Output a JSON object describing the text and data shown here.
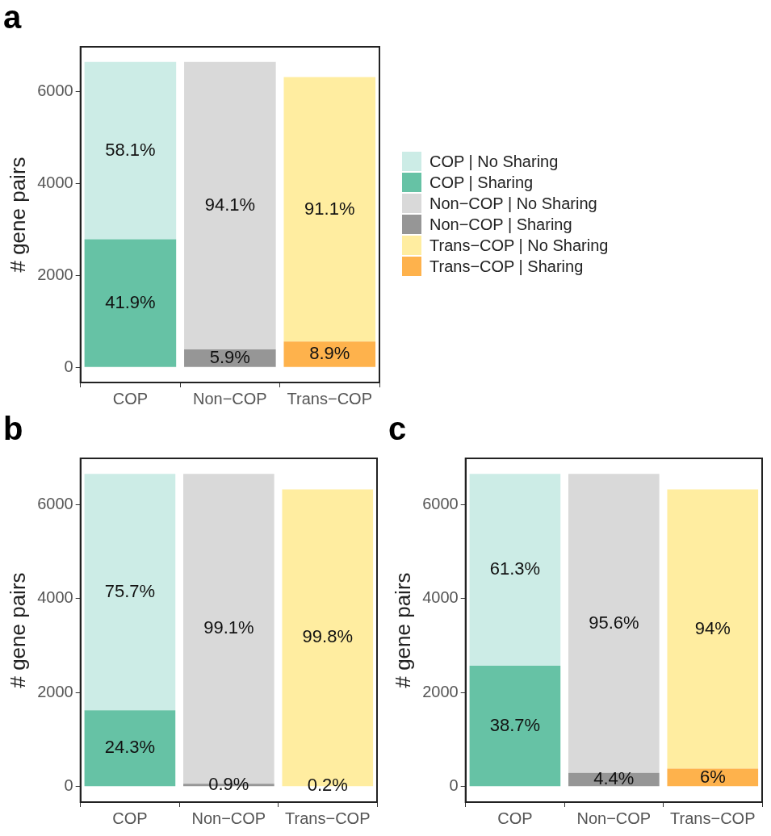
{
  "chart_data": [
    {
      "type": "bar",
      "title": "a",
      "ylabel": "# gene pairs",
      "categories": [
        "COP",
        "Non−COP",
        "Trans−COP"
      ],
      "stacked": true,
      "ylim": [
        -330,
        6980
      ],
      "yticks": [
        0,
        2000,
        4000,
        6000
      ],
      "legend": "right",
      "series": [
        {
          "name": "COP | Sharing",
          "color": "#66c2a5",
          "values": [
            2790,
            null,
            null
          ]
        },
        {
          "name": "COP | No Sharing",
          "color": "#ccece6",
          "values": [
            3860,
            null,
            null
          ]
        },
        {
          "name": "Non−COP | Sharing",
          "color": "#969696",
          "values": [
            null,
            390,
            null
          ]
        },
        {
          "name": "Non−COP | No Sharing",
          "color": "#d9d9d9",
          "values": [
            null,
            6260,
            null
          ]
        },
        {
          "name": "Trans−COP | Sharing",
          "color": "#feb24c",
          "values": [
            null,
            null,
            560
          ]
        },
        {
          "name": "Trans−COP | No Sharing",
          "color": "#ffeda0",
          "values": [
            null,
            null,
            5760
          ]
        }
      ],
      "annotations": [
        "41.9%",
        "58.1%",
        "5.9%",
        "94.1%",
        "8.9%",
        "91.1%"
      ]
    },
    {
      "type": "bar",
      "title": "b",
      "ylabel": "# gene pairs",
      "categories": [
        "COP",
        "Non−COP",
        "Trans−COP"
      ],
      "stacked": true,
      "ylim": [
        -330,
        6980
      ],
      "yticks": [
        0,
        2000,
        4000,
        6000
      ],
      "series": [
        {
          "color": "#66c2a5",
          "values": [
            1620,
            null,
            null
          ]
        },
        {
          "color": "#ccece6",
          "values": [
            5030,
            null,
            null
          ]
        },
        {
          "color": "#969696",
          "values": [
            null,
            60,
            null
          ]
        },
        {
          "color": "#d9d9d9",
          "values": [
            null,
            6590,
            null
          ]
        },
        {
          "color": "#feb24c",
          "values": [
            null,
            null,
            10
          ]
        },
        {
          "color": "#ffeda0",
          "values": [
            null,
            null,
            6310
          ]
        }
      ],
      "annotations": [
        "24.3%",
        "75.7%",
        "0.9%",
        "99.1%",
        "0.2%",
        "99.8%"
      ]
    },
    {
      "type": "bar",
      "title": "c",
      "ylabel": "# gene pairs",
      "categories": [
        "COP",
        "Non−COP",
        "Trans−COP"
      ],
      "stacked": true,
      "ylim": [
        -330,
        6980
      ],
      "yticks": [
        0,
        2000,
        4000,
        6000
      ],
      "series": [
        {
          "color": "#66c2a5",
          "values": [
            2570,
            null,
            null
          ]
        },
        {
          "color": "#ccece6",
          "values": [
            4080,
            null,
            null
          ]
        },
        {
          "color": "#969696",
          "values": [
            null,
            290,
            null
          ]
        },
        {
          "color": "#d9d9d9",
          "values": [
            null,
            6360,
            null
          ]
        },
        {
          "color": "#feb24c",
          "values": [
            null,
            null,
            380
          ]
        },
        {
          "color": "#ffeda0",
          "values": [
            null,
            null,
            5940
          ]
        }
      ],
      "annotations": [
        "38.7%",
        "61.3%",
        "4.4%",
        "95.6%",
        "6%",
        "94%"
      ]
    }
  ]
}
